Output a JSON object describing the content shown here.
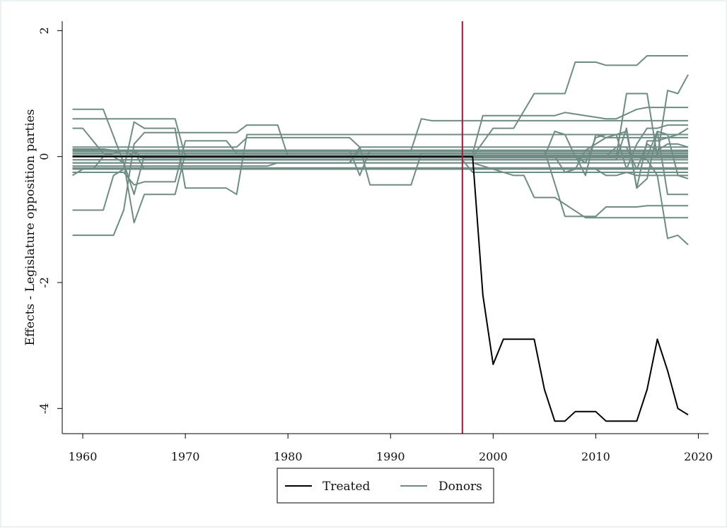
{
  "chart_data": {
    "type": "line",
    "ylabel": "Effects - Legislature opposition parties",
    "xlim": [
      1958,
      2021
    ],
    "ylim": [
      -4.4,
      2.15
    ],
    "x_ticks": [
      1960,
      1970,
      1980,
      1990,
      2000,
      2010,
      2020
    ],
    "y_ticks": [
      -4,
      -2,
      0,
      2
    ],
    "grid": false,
    "legend_position": "bottom",
    "colors": {
      "treated": "#000000",
      "donors": "#6f8c84",
      "vline": "#b0123f"
    },
    "vline_x": 1997,
    "treated": {
      "name": "Treated",
      "x": [
        1959,
        1998,
        1999,
        2000,
        2001,
        2002,
        2003,
        2004,
        2005,
        2006,
        2007,
        2008,
        2009,
        2010,
        2011,
        2012,
        2013,
        2014,
        2015,
        2016,
        2017,
        2018,
        2019
      ],
      "y": [
        0,
        0,
        -2.2,
        -3.3,
        -2.9,
        -2.9,
        -2.9,
        -2.9,
        -3.7,
        -4.2,
        -4.2,
        -4.05,
        -4.05,
        -4.05,
        -4.2,
        -4.2,
        -4.2,
        -4.2,
        -3.7,
        -2.9,
        -3.4,
        -4.0,
        -4.1
      ]
    },
    "donors_name": "Donors",
    "donors": [
      {
        "x": [
          1959,
          1962,
          1964,
          1965,
          1966,
          2019
        ],
        "y": [
          0.75,
          0.75,
          -0.1,
          -0.6,
          0.02,
          0.02
        ]
      },
      {
        "x": [
          1959,
          1969,
          1970,
          2019
        ],
        "y": [
          0.6,
          0.6,
          0.0,
          0.0
        ]
      },
      {
        "x": [
          1959,
          1960,
          1962,
          1963,
          1964,
          1965,
          1966,
          1969,
          1970,
          2019
        ],
        "y": [
          0.45,
          0.45,
          0.05,
          0.0,
          -0.1,
          -1.05,
          -0.6,
          -0.6,
          0.05,
          0.05
        ]
      },
      {
        "x": [
          1959,
          1962,
          1963,
          1964,
          1965,
          1966,
          1969,
          1970,
          1974,
          1975,
          1976,
          2019
        ],
        "y": [
          -0.85,
          -0.85,
          -0.3,
          -0.2,
          0.55,
          0.45,
          0.45,
          -0.5,
          -0.5,
          -0.6,
          0.35,
          0.35
        ]
      },
      {
        "x": [
          1959,
          1963,
          1964,
          1965,
          1966,
          1970,
          1975,
          1976,
          1979,
          1980,
          2019
        ],
        "y": [
          -1.25,
          -1.25,
          -0.85,
          0.2,
          0.38,
          0.38,
          0.38,
          0.5,
          0.5,
          0.0,
          0.0
        ]
      },
      {
        "x": [
          1959,
          1964,
          1965,
          1966,
          1969,
          1970,
          1974,
          1975,
          2019
        ],
        "y": [
          -0.25,
          -0.25,
          -0.45,
          -0.4,
          -0.4,
          0.25,
          0.25,
          0.05,
          0.05
        ]
      },
      {
        "x": [
          1959,
          1986,
          1987,
          1988,
          1992,
          1993,
          1994,
          1996,
          1997,
          1998,
          2019
        ],
        "y": [
          0.1,
          0.1,
          -0.3,
          0.1,
          0.1,
          0.6,
          0.57,
          0.57,
          0.57,
          0.57,
          0.57
        ]
      },
      {
        "x": [
          1959,
          1986,
          1987,
          1988,
          1992,
          1993,
          2019
        ],
        "y": [
          -0.1,
          -0.1,
          0.15,
          -0.45,
          -0.45,
          0.05,
          0.05
        ]
      },
      {
        "x": [
          1959,
          1975,
          1976,
          1986,
          1987,
          2019
        ],
        "y": [
          0.15,
          0.15,
          0.3,
          0.3,
          0.15,
          0.15
        ]
      },
      {
        "x": [
          1959,
          1978,
          1979,
          1986,
          1987,
          2019
        ],
        "y": [
          -0.15,
          -0.15,
          -0.1,
          -0.1,
          0.1,
          0.1
        ]
      },
      {
        "x": [
          1959,
          1998,
          1999,
          2006,
          2007,
          2011,
          2012,
          2014,
          2015,
          2019
        ],
        "y": [
          0.05,
          0.05,
          0.65,
          0.65,
          0.7,
          0.6,
          0.6,
          0.75,
          0.78,
          0.78
        ]
      },
      {
        "x": [
          1959,
          1998,
          2000,
          2001,
          2002,
          2004,
          2007,
          2008,
          2009,
          2010,
          2011,
          2014,
          2015,
          2016,
          2019
        ],
        "y": [
          0.0,
          0.0,
          0.45,
          0.45,
          0.45,
          1.0,
          1.0,
          1.5,
          1.5,
          1.5,
          1.45,
          1.45,
          1.6,
          1.6,
          1.6
        ]
      },
      {
        "x": [
          1959,
          1998,
          2002,
          2003,
          2004,
          2005,
          2006,
          2009,
          2010,
          2019
        ],
        "y": [
          -0.1,
          -0.1,
          -0.3,
          -0.3,
          -0.65,
          -0.65,
          -0.65,
          -0.97,
          -0.97,
          -0.97
        ]
      },
      {
        "x": [
          1959,
          2004,
          2005,
          2007,
          2008,
          2009,
          2010,
          2011,
          2014,
          2015,
          2016,
          2019
        ],
        "y": [
          0.1,
          0.1,
          0.1,
          -0.95,
          -0.95,
          -0.95,
          -0.95,
          -0.8,
          -0.8,
          -0.78,
          -0.78,
          -0.78
        ]
      },
      {
        "x": [
          1959,
          2012,
          2013,
          2014,
          2015,
          2016,
          2017,
          2018,
          2019
        ],
        "y": [
          0.0,
          0.0,
          1.0,
          1.0,
          1.0,
          0.0,
          1.05,
          1.0,
          1.3
        ]
      },
      {
        "x": [
          1959,
          2014,
          2015,
          2016,
          2017,
          2018,
          2019
        ],
        "y": [
          0.0,
          0.0,
          -0.05,
          -0.3,
          -1.3,
          -1.25,
          -1.4
        ]
      },
      {
        "x": [
          1959,
          2015,
          2016,
          2017,
          2018,
          2019
        ],
        "y": [
          0.0,
          0.0,
          0.4,
          -0.6,
          -0.6,
          -0.6
        ]
      },
      {
        "x": [
          1959,
          2005,
          2006,
          2007,
          2008,
          2009,
          2010,
          2011,
          2012,
          2013,
          2014,
          2015,
          2016,
          2017,
          2018,
          2019
        ],
        "y": [
          0.0,
          0.0,
          0.4,
          0.35,
          0.0,
          -0.1,
          0.3,
          0.35,
          0.35,
          -0.2,
          0.2,
          0.45,
          0.45,
          0.5,
          0.5,
          0.5
        ]
      },
      {
        "x": [
          1959,
          2008,
          2009,
          2010,
          2011,
          2012,
          2013,
          2014,
          2015,
          2016,
          2017,
          2018,
          2019
        ],
        "y": [
          0.02,
          0.02,
          -0.3,
          0.35,
          0.3,
          0.35,
          0.4,
          -0.5,
          0.25,
          0.25,
          0.3,
          0.35,
          0.45
        ]
      },
      {
        "x": [
          1959,
          2012,
          2013,
          2014,
          2015,
          2016,
          2017,
          2018,
          2019
        ],
        "y": [
          -0.05,
          -0.05,
          0.45,
          -0.5,
          -0.35,
          0.4,
          0.35,
          -0.3,
          -0.35
        ]
      },
      {
        "x": [
          1959,
          2010,
          2011,
          2012,
          2013,
          2014,
          2015,
          2016,
          2017,
          2018,
          2019
        ],
        "y": [
          -0.2,
          -0.2,
          -0.3,
          -0.3,
          -0.25,
          -0.3,
          -0.3,
          -0.3,
          -0.3,
          -0.3,
          -0.3
        ]
      },
      {
        "x": [
          1959,
          2011,
          2012,
          2013,
          2014,
          2015,
          2016,
          2017,
          2018,
          2019
        ],
        "y": [
          0.0,
          0.0,
          0.15,
          0.15,
          -0.2,
          0.2,
          0.1,
          0.2,
          0.2,
          0.15
        ]
      },
      {
        "x": [
          1959,
          2006,
          2007,
          2008,
          2009,
          2010,
          2011,
          2019
        ],
        "y": [
          0.0,
          0.0,
          -0.25,
          -0.2,
          0.1,
          0.2,
          0.3,
          0.3
        ]
      },
      {
        "x": [
          1959,
          1963,
          1964,
          1965,
          1966,
          2019
        ],
        "y": [
          0.05,
          0.05,
          0.1,
          0.1,
          -0.05,
          -0.05
        ]
      },
      {
        "x": [
          1959,
          1960,
          1961,
          1962,
          1963,
          1964,
          1965,
          1966,
          2019
        ],
        "y": [
          -0.3,
          -0.2,
          -0.2,
          0.0,
          0.05,
          0.1,
          0.0,
          -0.02,
          -0.02
        ]
      },
      {
        "x": [
          1959,
          1961,
          1962,
          1963,
          1964,
          1965,
          1966,
          1969,
          1970,
          2019
        ],
        "y": [
          0.12,
          0.12,
          0.12,
          0.1,
          0.1,
          0.08,
          -0.2,
          -0.2,
          -0.2,
          -0.2
        ]
      },
      {
        "x": [
          1959,
          2019
        ],
        "y": [
          -0.1,
          -0.1
        ]
      },
      {
        "x": [
          1959,
          2019
        ],
        "y": [
          -0.18,
          -0.18
        ]
      },
      {
        "x": [
          1959,
          2019
        ],
        "y": [
          0.08,
          0.08
        ]
      },
      {
        "x": [
          1959,
          1997,
          1998,
          2019
        ],
        "y": [
          -0.05,
          -0.05,
          -0.25,
          -0.25
        ]
      }
    ]
  }
}
